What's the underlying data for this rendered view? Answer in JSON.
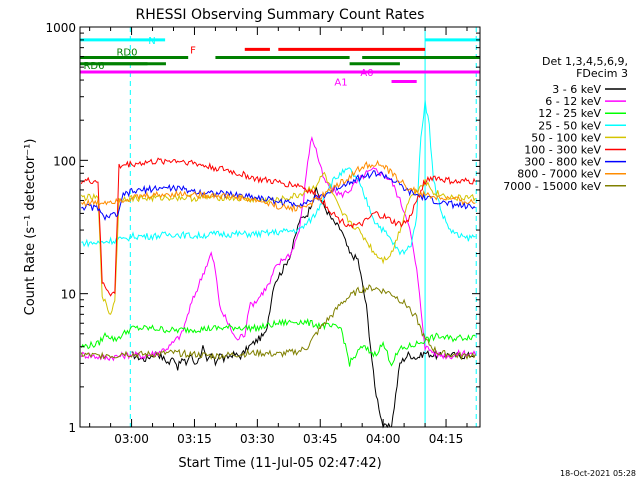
{
  "chart_data": {
    "type": "line",
    "title": "RHESSI Observing Summary Count Rates",
    "xlabel": "Start Time (11-Jul-05 02:47:42)",
    "ylabel": "Count Rate (s⁻¹ detector⁻¹)",
    "ylim": [
      1,
      1000
    ],
    "yscale": "log",
    "xlim_minutes": [
      -12.3,
      83.1
    ],
    "x_ticks": [
      {
        "m": 0,
        "label": "03:00"
      },
      {
        "m": 15,
        "label": "03:15"
      },
      {
        "m": 30,
        "label": "03:30"
      },
      {
        "m": 45,
        "label": "03:45"
      },
      {
        "m": 60,
        "label": "04:00"
      },
      {
        "m": 75,
        "label": "04:15"
      }
    ],
    "y_ticks": [
      {
        "v": 1,
        "label": "1"
      },
      {
        "v": 10,
        "label": "10"
      },
      {
        "v": 100,
        "label": "100"
      },
      {
        "v": 1000,
        "label": "1000"
      }
    ],
    "legend": {
      "position": "right",
      "header": [
        "Det 1,3,4,5,6,9,",
        "FDecim 3"
      ],
      "entries": [
        {
          "label": "3 - 6 keV",
          "color": "#000000"
        },
        {
          "label": "6 - 12 keV",
          "color": "#ff00ff"
        },
        {
          "label": "12 - 25 keV",
          "color": "#00ff00"
        },
        {
          "label": "25 - 50 keV",
          "color": "#00ffff"
        },
        {
          "label": "50 - 100 keV",
          "color": "#d4c400"
        },
        {
          "label": "100 - 300 keV",
          "color": "#ff0000"
        },
        {
          "label": "300 - 800 keV",
          "color": "#0000ff"
        },
        {
          "label": "800 - 7000 keV",
          "color": "#ff8c00"
        },
        {
          "label": "7000 - 15000 keV",
          "color": "#808000"
        }
      ]
    },
    "series": [
      {
        "name": "3 - 6 keV",
        "color": "#000000",
        "x": [
          0,
          3,
          6,
          9,
          10,
          11,
          12,
          13,
          14,
          15,
          16,
          17,
          18,
          19,
          20,
          21,
          22,
          24,
          26,
          28,
          30,
          32,
          34,
          36,
          38,
          40,
          42,
          44,
          46,
          48,
          50,
          52,
          54,
          56,
          58,
          60,
          62,
          64,
          66,
          68,
          70,
          73,
          76,
          79,
          82
        ],
        "y": [
          3.5,
          3.2,
          3.6,
          3,
          3.4,
          2.8,
          3.2,
          3,
          3.5,
          3,
          3.2,
          4,
          3,
          3.5,
          3,
          3.6,
          3.2,
          3.5,
          3.4,
          4,
          4.5,
          5,
          12,
          15,
          20,
          35,
          40,
          60,
          45,
          35,
          30,
          20,
          18,
          8,
          2,
          1,
          1,
          3,
          3.5,
          3.3,
          3.6,
          3.4,
          3.5,
          3.4,
          3.5
        ]
      },
      {
        "name": "6 - 12 keV",
        "color": "#ff00ff",
        "x": [
          -12,
          -6,
          0,
          3,
          6,
          9,
          12,
          14,
          17,
          19,
          20,
          21,
          23,
          25,
          27,
          28,
          30,
          31,
          33,
          34,
          36,
          38,
          40,
          41,
          42,
          43,
          44,
          45,
          46,
          48,
          50,
          52,
          54,
          56,
          58,
          60,
          62,
          64,
          66,
          68,
          70,
          73,
          76,
          79,
          82
        ],
        "y": [
          3.5,
          3.3,
          3.5,
          3.4,
          3.6,
          4,
          5,
          8,
          14,
          20,
          15,
          8,
          6,
          4.5,
          5,
          8,
          9,
          10,
          12,
          15,
          18,
          20,
          30,
          50,
          100,
          150,
          120,
          90,
          70,
          60,
          55,
          60,
          70,
          80,
          85,
          78,
          70,
          50,
          35,
          15,
          4,
          3.5,
          3.4,
          3.6,
          3.5
        ]
      },
      {
        "name": "12 - 25 keV",
        "color": "#00ff00",
        "x": [
          -12,
          -8,
          -6,
          -4,
          0,
          5,
          10,
          15,
          20,
          25,
          30,
          35,
          40,
          45,
          50,
          52,
          55,
          58,
          60,
          62,
          64,
          66,
          68,
          70,
          73,
          76,
          79,
          82
        ],
        "y": [
          4,
          4.2,
          5,
          4.5,
          5.5,
          5.5,
          5.3,
          5.4,
          5.5,
          5.6,
          5.5,
          6,
          6.2,
          5.8,
          5.5,
          3,
          4,
          3.5,
          4.2,
          3,
          3.8,
          4,
          4.2,
          4.5,
          4.8,
          4.6,
          4.7,
          4.8
        ]
      },
      {
        "name": "25 - 50 keV",
        "color": "#00ffff",
        "x": [
          -12,
          -8,
          -5,
          -4,
          -3,
          -2,
          0,
          5,
          10,
          15,
          20,
          25,
          30,
          35,
          40,
          42,
          44,
          46,
          48,
          50,
          52,
          54,
          56,
          58,
          60,
          62,
          64,
          66,
          67,
          68,
          69,
          70,
          71,
          72,
          74,
          76,
          78,
          80,
          82
        ],
        "y": [
          24,
          24,
          25,
          25,
          26,
          25,
          27,
          27,
          28,
          27,
          28,
          28,
          28,
          29,
          30,
          34,
          40,
          55,
          70,
          80,
          85,
          70,
          50,
          35,
          30,
          25,
          20,
          22,
          25,
          40,
          150,
          280,
          180,
          70,
          40,
          30,
          27,
          26,
          27
        ]
      },
      {
        "name": "50 - 100 keV",
        "color": "#d4c400",
        "x": [
          -12,
          -8,
          -7,
          -6,
          -5,
          -4,
          -3,
          -2,
          0,
          5,
          10,
          15,
          20,
          25,
          30,
          35,
          40,
          42,
          44,
          46,
          48,
          50,
          52,
          54,
          56,
          58,
          60,
          62,
          64,
          66,
          68,
          70,
          72,
          74,
          76,
          78,
          80,
          82
        ],
        "y": [
          53,
          52,
          10,
          8,
          7,
          9,
          50,
          52,
          52,
          52,
          53,
          52,
          53,
          52,
          50,
          50,
          55,
          60,
          65,
          80,
          55,
          40,
          35,
          30,
          25,
          20,
          18,
          20,
          30,
          50,
          60,
          70,
          58,
          55,
          53,
          52,
          53,
          52
        ]
      },
      {
        "name": "100 - 300 keV",
        "color": "#ff0000",
        "x": [
          -12,
          -8,
          -7,
          -6,
          -5,
          -4,
          -3,
          -2,
          0,
          3,
          6,
          10,
          13,
          15,
          18,
          20,
          23,
          25,
          28,
          30,
          33,
          35,
          38,
          40,
          42,
          44,
          46,
          48,
          50,
          52,
          54,
          56,
          58,
          60,
          62,
          64,
          66,
          68,
          70,
          72,
          74,
          76,
          78,
          80,
          82
        ],
        "y": [
          70,
          70,
          12,
          11,
          10,
          10,
          90,
          92,
          94,
          96,
          98,
          100,
          98,
          95,
          90,
          88,
          84,
          80,
          76,
          72,
          70,
          68,
          66,
          65,
          60,
          55,
          48,
          40,
          35,
          33,
          32,
          35,
          40,
          38,
          35,
          33,
          35,
          50,
          70,
          75,
          72,
          70,
          68,
          70,
          69
        ]
      },
      {
        "name": "300 - 800 keV",
        "color": "#0000ff",
        "x": [
          -12,
          -8,
          -7,
          -5,
          -3,
          -2,
          0,
          3,
          6,
          10,
          13,
          16,
          19,
          22,
          25,
          28,
          31,
          34,
          37,
          40,
          43,
          46,
          49,
          52,
          55,
          58,
          60,
          62,
          64,
          66,
          68,
          70,
          72,
          74,
          76,
          78,
          80,
          82
        ],
        "y": [
          45,
          44,
          38,
          38,
          40,
          55,
          58,
          60,
          62,
          62,
          60,
          58,
          57,
          56,
          55,
          54,
          52,
          50,
          48,
          47,
          50,
          55,
          62,
          70,
          75,
          80,
          78,
          72,
          65,
          58,
          55,
          52,
          50,
          48,
          47,
          46,
          45,
          44
        ]
      },
      {
        "name": "800 - 7000 keV",
        "color": "#ff8c00",
        "x": [
          -12,
          -8,
          -6,
          -4,
          -2,
          0,
          3,
          6,
          10,
          13,
          16,
          19,
          22,
          25,
          28,
          31,
          34,
          37,
          40,
          43,
          46,
          49,
          52,
          55,
          58,
          60,
          62,
          64,
          66,
          68,
          70,
          72,
          74,
          76,
          78,
          80,
          82
        ],
        "y": [
          48,
          48,
          49,
          50,
          51,
          52,
          54,
          55,
          56,
          56,
          55,
          55,
          54,
          53,
          51,
          49,
          46,
          44,
          44,
          48,
          55,
          65,
          75,
          90,
          95,
          90,
          80,
          70,
          62,
          58,
          55,
          53,
          52,
          51,
          50,
          49,
          48
        ]
      },
      {
        "name": "7000 - 15000 keV",
        "color": "#808000",
        "x": [
          -12,
          -8,
          -6,
          -4,
          -2,
          0,
          5,
          10,
          15,
          20,
          25,
          30,
          35,
          40,
          42,
          44,
          46,
          48,
          50,
          52,
          54,
          56,
          58,
          60,
          62,
          64,
          66,
          68,
          70,
          73,
          76,
          79,
          82
        ],
        "y": [
          3.5,
          3.4,
          3.5,
          3.4,
          3.6,
          3.5,
          3.5,
          3.6,
          3.5,
          3.4,
          3.5,
          3.6,
          3.5,
          3.7,
          4,
          5,
          6,
          7,
          8.5,
          9.5,
          10.5,
          11,
          11,
          10.5,
          10,
          9,
          8,
          6.5,
          4.5,
          3.6,
          3.5,
          3.4,
          3.5
        ]
      }
    ],
    "state_bars": [
      {
        "label": "N",
        "color": "#00ffff",
        "segments": [
          [
            -12.3,
            8
          ]
        ],
        "extra_segments": [
          [
            70,
            83.1
          ]
        ],
        "level": 800
      },
      {
        "label": "F",
        "color": "#ff0000",
        "segments": [
          [
            27,
            33
          ],
          [
            35,
            70
          ]
        ],
        "level": 680
      },
      {
        "label": "RD0",
        "color": "#008000",
        "segments": [
          [
            -12.3,
            13.5
          ],
          [
            20,
            52
          ],
          [
            55,
            83.1
          ]
        ],
        "level": 590
      },
      {
        "label": "RD6",
        "color": "#008000",
        "segments": [
          [
            -12.3,
            3.8
          ],
          [
            -8,
            8.2
          ],
          [
            52,
            64
          ]
        ],
        "level": 530
      },
      {
        "label": "A0",
        "color": "#ff00ff",
        "segments": [
          [
            -12.3,
            83.1
          ]
        ],
        "level": 460
      },
      {
        "label": "A1",
        "color": "#ff00ff",
        "segments": [
          [
            62,
            68
          ]
        ],
        "level": 390
      }
    ],
    "vlines": [
      {
        "m": -12.3,
        "color": "#00ffff",
        "style": "solid"
      },
      {
        "m": -0.3,
        "color": "#00ffff",
        "style": "dashed"
      },
      {
        "m": 70,
        "color": "#00ffff",
        "style": "solid"
      },
      {
        "m": 82.2,
        "color": "#00ffff",
        "style": "dashed"
      }
    ],
    "footer": "18-Oct-2021 05:28"
  }
}
